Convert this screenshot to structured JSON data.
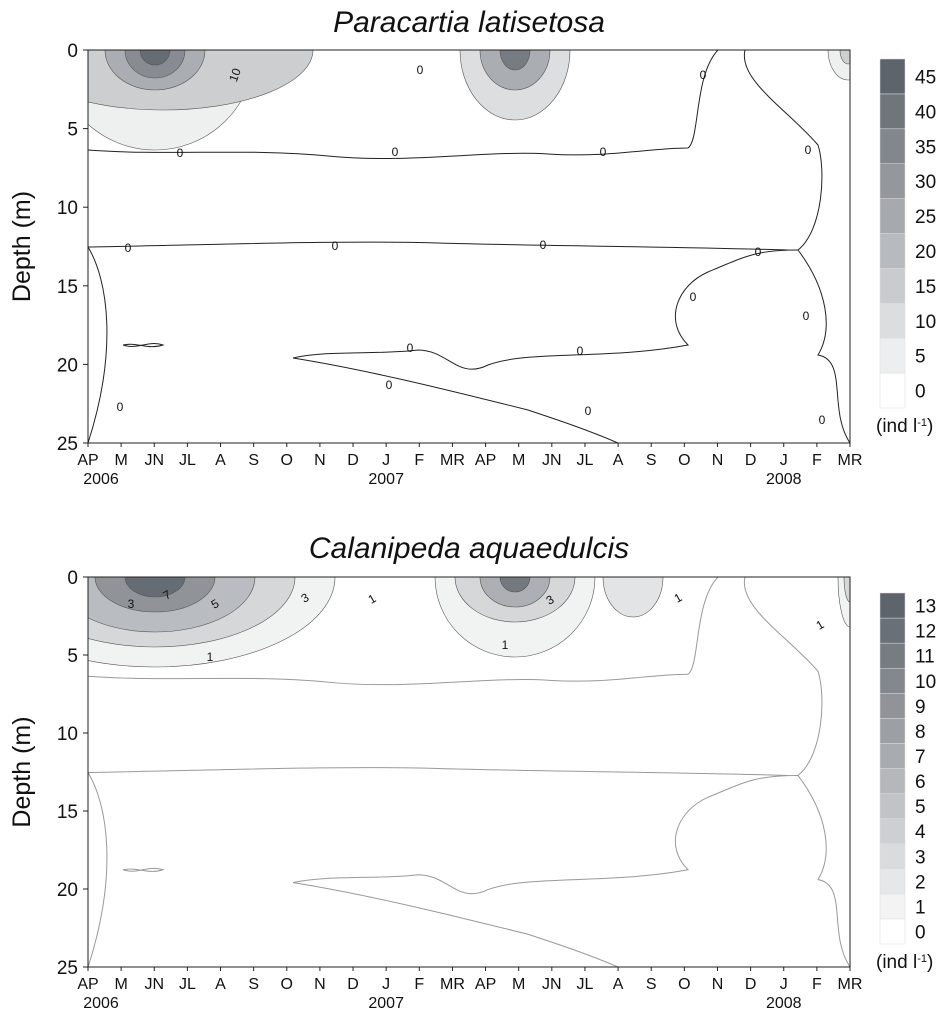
{
  "chart_data": [
    {
      "type": "contour",
      "title": "Paracartia latisetosa",
      "ylabel": "Depth (m)",
      "categories": [
        "AP",
        "M",
        "JN",
        "JL",
        "A",
        "S",
        "O",
        "N",
        "D",
        "J",
        "F",
        "MR",
        "AP",
        "M",
        "JN",
        "JL",
        "A",
        "S",
        "O",
        "N",
        "D",
        "J",
        "F",
        "MR"
      ],
      "years": [
        "2006",
        "2007",
        "2008"
      ],
      "ylim": [
        0,
        25
      ],
      "yticks": [
        0,
        5,
        10,
        15,
        20,
        25
      ],
      "levels": [
        0,
        5,
        10,
        15,
        20,
        25,
        30,
        35,
        40,
        45
      ],
      "colormap": [
        "#ffffff",
        "#5e646c"
      ],
      "colorbar_label": [
        "(ind l",
        "-1",
        ")"
      ],
      "contour_labels": [
        10,
        0,
        0,
        0,
        0,
        0,
        0,
        0,
        0,
        0,
        0,
        0,
        0,
        0,
        0,
        0,
        0,
        0,
        0
      ]
    },
    {
      "type": "contour",
      "title": "Calanipeda aquaedulcis",
      "ylabel": "Depth (m)",
      "categories": [
        "AP",
        "M",
        "JN",
        "JL",
        "A",
        "S",
        "O",
        "N",
        "D",
        "J",
        "F",
        "MR",
        "AP",
        "M",
        "JN",
        "JL",
        "A",
        "S",
        "O",
        "N",
        "D",
        "J",
        "F",
        "MR"
      ],
      "years": [
        "2006",
        "2007",
        "2008"
      ],
      "ylim": [
        0,
        25
      ],
      "yticks": [
        0,
        5,
        10,
        15,
        20,
        25
      ],
      "levels": [
        0,
        1,
        2,
        3,
        4,
        5,
        6,
        7,
        8,
        9,
        10,
        11,
        12,
        13
      ],
      "colormap": [
        "#ffffff",
        "#5e646c"
      ],
      "colorbar_label": [
        "(ind l",
        "-1",
        ")"
      ],
      "contour_labels": [
        3,
        7,
        5,
        3,
        1,
        1,
        3,
        1,
        1,
        1
      ]
    }
  ]
}
